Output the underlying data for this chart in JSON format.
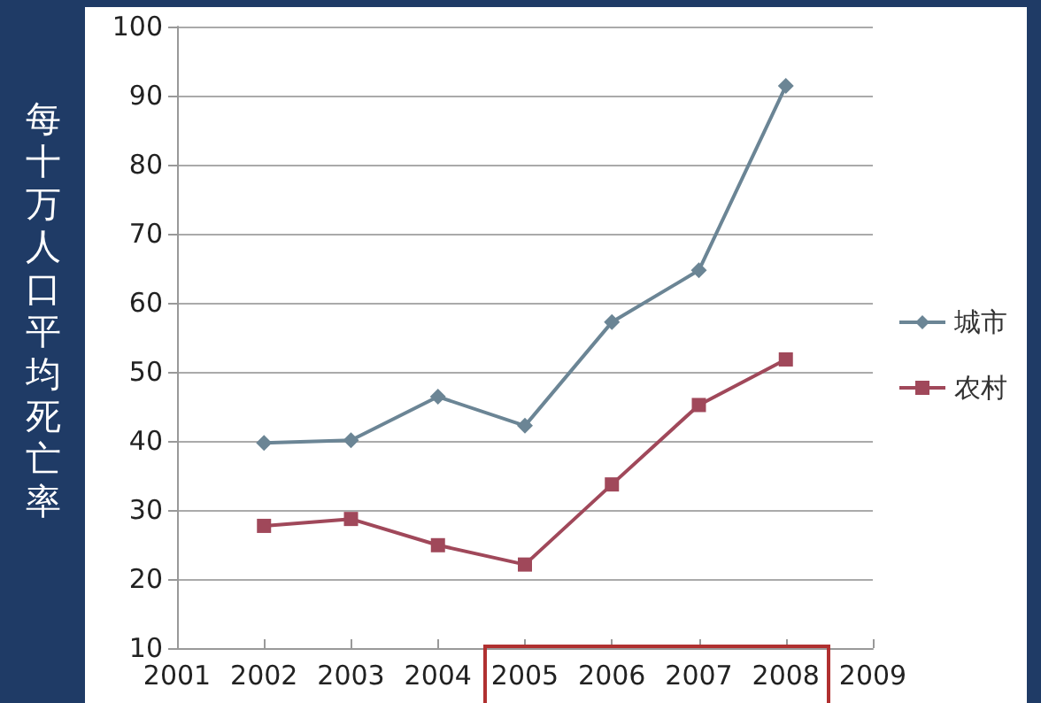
{
  "chart_data": {
    "type": "line",
    "ylabel": "每十万人口平均死亡率",
    "x": [
      2002,
      2003,
      2004,
      2005,
      2006,
      2007,
      2008
    ],
    "series": [
      {
        "name": "城市",
        "color": "#6b8595",
        "marker": "diamond",
        "values": [
          39.7,
          40.1,
          46.4,
          42.2,
          57.2,
          64.7,
          91.4
        ]
      },
      {
        "name": "农村",
        "color": "#a0485a",
        "marker": "square",
        "values": [
          27.7,
          28.7,
          24.9,
          22.1,
          33.7,
          45.2,
          51.8
        ]
      }
    ],
    "xlim": [
      2001,
      2009
    ],
    "xticks": [
      2001,
      2002,
      2003,
      2004,
      2005,
      2006,
      2007,
      2008,
      2009
    ],
    "ylim": [
      10,
      100
    ],
    "yticks": [
      10,
      20,
      30,
      40,
      50,
      60,
      70,
      80,
      90,
      100
    ],
    "grid": "y",
    "legend": "right",
    "line_style": "solid"
  }
}
